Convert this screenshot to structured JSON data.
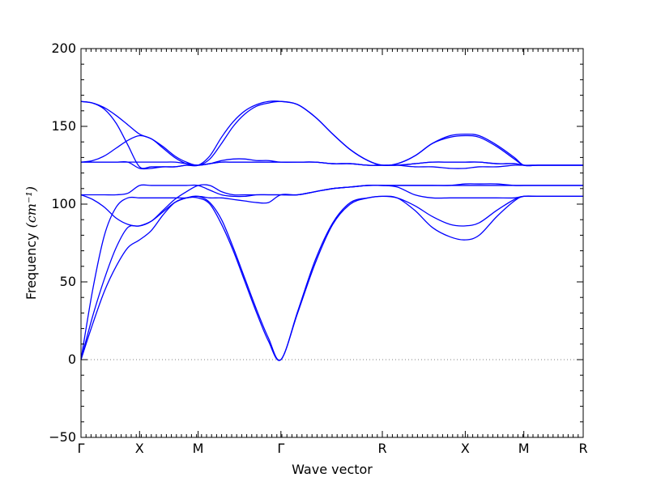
{
  "chart_data": {
    "type": "line",
    "title": "",
    "xlabel": "Wave vector",
    "ylabel": "Frequency",
    "ylabel_unit": "(cm⁻¹)",
    "ylim": [
      -50,
      200
    ],
    "yticks": [
      -50,
      0,
      50,
      100,
      150,
      200
    ],
    "x_ticks": [
      {
        "label": "Γ",
        "x": 0
      },
      {
        "label": "X",
        "x": 0.5
      },
      {
        "label": "M",
        "x": 1.0
      },
      {
        "label": "Γ",
        "x": 1.707
      },
      {
        "label": "R",
        "x": 2.573
      },
      {
        "label": "X",
        "x": 3.281
      },
      {
        "label": "M",
        "x": 3.781
      },
      {
        "label": "R",
        "x": 4.288
      }
    ],
    "zero_line": true,
    "grid": false,
    "line_color": "#0000ff",
    "zero_line_color": "#808080",
    "series": [
      {
        "x": [
          0,
          0.1,
          0.2,
          0.3,
          0.4,
          0.5,
          0.6,
          0.7,
          0.8,
          0.9,
          1.0,
          1.1,
          1.2,
          1.3,
          1.4,
          1.5,
          1.6,
          1.707,
          1.85,
          2.0,
          2.15,
          2.3,
          2.45,
          2.573,
          2.7,
          2.85,
          3.0,
          3.15,
          3.281,
          3.4,
          3.55,
          3.7,
          3.781,
          3.9,
          4.05,
          4.2,
          4.288
        ],
        "values": [
          0,
          23,
          44,
          60,
          72,
          77,
          83,
          93,
          101,
          104,
          104,
          100,
          87,
          70,
          50,
          30,
          12,
          0,
          30,
          62,
          87,
          100,
          104,
          105,
          104,
          96,
          85,
          79,
          77,
          80,
          92,
          102,
          105,
          105,
          105,
          105,
          105
        ]
      },
      {
        "x": [
          0,
          0.1,
          0.2,
          0.3,
          0.4,
          0.5,
          0.6,
          0.7,
          0.8,
          0.9,
          1.0,
          1.1,
          1.2,
          1.3,
          1.4,
          1.5,
          1.6,
          1.707,
          1.85,
          2.0,
          2.15,
          2.3,
          2.45,
          2.573,
          2.7,
          2.85,
          3.0,
          3.15,
          3.281,
          3.4,
          3.55,
          3.7,
          3.781,
          3.9,
          4.05,
          4.2,
          4.288
        ],
        "values": [
          0,
          28,
          52,
          72,
          85,
          86,
          89,
          95,
          101,
          104,
          105,
          101,
          90,
          72,
          52,
          32,
          14,
          0,
          31,
          64,
          88,
          101,
          104,
          105,
          104,
          99,
          92,
          87,
          86,
          88,
          96,
          103,
          105,
          105,
          105,
          105,
          105
        ]
      },
      {
        "x": [
          0,
          0.1,
          0.2,
          0.3,
          0.4,
          0.5,
          0.6,
          0.7,
          0.8,
          0.9,
          1.0,
          1.1,
          1.2,
          1.3,
          1.4,
          1.5,
          1.6,
          1.707,
          1.85,
          2.0,
          2.15,
          2.3,
          2.45,
          2.573,
          2.7,
          2.85,
          3.0,
          3.15,
          3.281,
          3.4,
          3.55,
          3.7,
          3.781,
          3.9,
          4.05,
          4.2,
          4.288
        ],
        "values": [
          0,
          45,
          80,
          98,
          104,
          104,
          104,
          104,
          104,
          104,
          105,
          104,
          104,
          103,
          102,
          101,
          101,
          106,
          106,
          108,
          110,
          111,
          112,
          112,
          111,
          106,
          104,
          104,
          104,
          104,
          104,
          104,
          105,
          105,
          105,
          105,
          105
        ]
      },
      {
        "x": [
          0,
          0.1,
          0.2,
          0.3,
          0.4,
          0.5,
          0.6,
          0.7,
          0.8,
          0.9,
          1.0,
          1.1,
          1.2,
          1.3,
          1.4,
          1.5,
          1.6,
          1.707,
          1.85,
          2.0,
          2.15,
          2.3,
          2.45,
          2.573,
          2.7,
          2.85,
          3.0,
          3.15,
          3.281,
          3.4,
          3.55,
          3.7,
          3.781,
          3.9,
          4.05,
          4.2,
          4.288
        ],
        "values": [
          106,
          106,
          106,
          106,
          107,
          112,
          112,
          112,
          112,
          112,
          112,
          109,
          106,
          105,
          105,
          106,
          106,
          106,
          106,
          108,
          110,
          111,
          112,
          112,
          112,
          112,
          112,
          112,
          113,
          113,
          113,
          112,
          112,
          112,
          112,
          112,
          112
        ]
      },
      {
        "x": [
          0,
          0.1,
          0.2,
          0.3,
          0.4,
          0.5,
          0.6,
          0.7,
          0.8,
          0.9,
          1.0,
          1.1,
          1.2,
          1.3,
          1.4,
          1.5,
          1.6,
          1.707,
          1.85,
          2.0,
          2.15,
          2.3,
          2.45,
          2.573,
          2.7,
          2.85,
          3.0,
          3.15,
          3.281,
          3.4,
          3.55,
          3.7,
          3.781,
          3.9,
          4.05,
          4.2,
          4.288
        ],
        "values": [
          106,
          103,
          98,
          91,
          87,
          86,
          89,
          96,
          103,
          108,
          112,
          112,
          108,
          106,
          106,
          106,
          106,
          106,
          106,
          108,
          110,
          111,
          112,
          112,
          112,
          112,
          112,
          112,
          112,
          112,
          112,
          112,
          112,
          112,
          112,
          112,
          112
        ]
      },
      {
        "x": [
          0,
          0.1,
          0.2,
          0.3,
          0.4,
          0.5,
          0.6,
          0.7,
          0.8,
          0.9,
          1.0,
          1.1,
          1.2,
          1.3,
          1.4,
          1.5,
          1.6,
          1.707,
          1.85,
          2.0,
          2.15,
          2.3,
          2.45,
          2.573,
          2.7,
          2.85,
          3.0,
          3.15,
          3.281,
          3.4,
          3.55,
          3.7,
          3.781,
          3.9,
          4.05,
          4.2,
          4.288
        ],
        "values": [
          127,
          127,
          127,
          127,
          127,
          123,
          123,
          124,
          124,
          125,
          125,
          126,
          127,
          127,
          127,
          127,
          127,
          127,
          127,
          127,
          126,
          126,
          125,
          125,
          125,
          124,
          124,
          123,
          123,
          124,
          124,
          125,
          125,
          125,
          125,
          125,
          125
        ]
      },
      {
        "x": [
          0,
          0.1,
          0.2,
          0.3,
          0.4,
          0.5,
          0.6,
          0.7,
          0.8,
          0.9,
          1.0,
          1.1,
          1.2,
          1.3,
          1.4,
          1.5,
          1.6,
          1.707,
          1.85,
          2.0,
          2.15,
          2.3,
          2.45,
          2.573,
          2.7,
          2.85,
          3.0,
          3.15,
          3.281,
          3.4,
          3.55,
          3.7,
          3.781,
          3.9,
          4.05,
          4.2,
          4.288
        ],
        "values": [
          127,
          127,
          127,
          127,
          127,
          127,
          127,
          127,
          127,
          126,
          125,
          126,
          127,
          127,
          127,
          127,
          127,
          127,
          127,
          127,
          126,
          126,
          125,
          125,
          125,
          126,
          127,
          127,
          127,
          127,
          126,
          126,
          125,
          125,
          125,
          125,
          125
        ]
      },
      {
        "x": [
          0,
          0.1,
          0.2,
          0.3,
          0.4,
          0.5,
          0.6,
          0.7,
          0.8,
          0.9,
          1.0,
          1.1,
          1.2,
          1.3,
          1.4,
          1.5,
          1.6,
          1.707,
          1.85,
          2.0,
          2.15,
          2.3,
          2.45,
          2.573,
          2.7,
          2.85,
          3.0,
          3.15,
          3.281,
          3.4,
          3.55,
          3.7,
          3.781,
          3.9,
          4.05,
          4.2,
          4.288
        ],
        "values": [
          127,
          128,
          131,
          136,
          141,
          144,
          142,
          136,
          130,
          126,
          125,
          126,
          128,
          129,
          129,
          128,
          128,
          127,
          127,
          127,
          126,
          126,
          125,
          125,
          125,
          126,
          127,
          127,
          127,
          127,
          126,
          126,
          125,
          125,
          125,
          125,
          125
        ]
      },
      {
        "x": [
          0,
          0.1,
          0.2,
          0.3,
          0.4,
          0.5,
          0.6,
          0.7,
          0.8,
          0.9,
          1.0,
          1.1,
          1.2,
          1.3,
          1.4,
          1.5,
          1.6,
          1.707,
          1.85,
          2.0,
          2.15,
          2.3,
          2.45,
          2.573,
          2.7,
          2.85,
          3.0,
          3.15,
          3.281,
          3.4,
          3.55,
          3.7,
          3.781,
          3.9,
          4.05,
          4.2,
          4.288
        ],
        "values": [
          166,
          165,
          161,
          152,
          138,
          124,
          124,
          124,
          124,
          125,
          125,
          131,
          143,
          153,
          160,
          164,
          166,
          166,
          164,
          156,
          145,
          135,
          128,
          125,
          126,
          131,
          139,
          143,
          144,
          143,
          137,
          129,
          125,
          125,
          125,
          125,
          125
        ]
      },
      {
        "x": [
          0,
          0.1,
          0.2,
          0.3,
          0.4,
          0.5,
          0.6,
          0.7,
          0.8,
          0.9,
          1.0,
          1.1,
          1.2,
          1.3,
          1.4,
          1.5,
          1.6,
          1.707,
          1.85,
          2.0,
          2.15,
          2.3,
          2.45,
          2.573,
          2.7,
          2.85,
          3.0,
          3.15,
          3.281,
          3.4,
          3.55,
          3.7,
          3.781,
          3.9,
          4.05,
          4.2,
          4.288
        ],
        "values": [
          166,
          165,
          162,
          157,
          151,
          145,
          142,
          137,
          131,
          127,
          125,
          129,
          139,
          150,
          158,
          163,
          165,
          166,
          164,
          156,
          145,
          135,
          128,
          125,
          126,
          131,
          139,
          144,
          145,
          144,
          138,
          130,
          125,
          125,
          125,
          125,
          125
        ]
      }
    ]
  }
}
